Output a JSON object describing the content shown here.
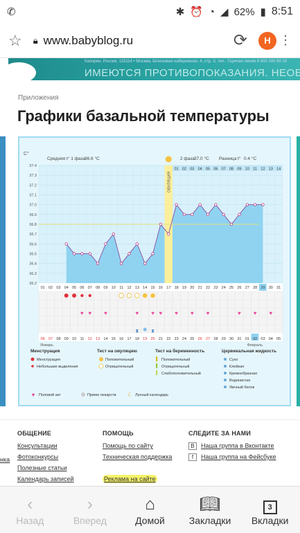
{
  "status": {
    "battery": "62%",
    "time": "8:51"
  },
  "browser": {
    "url": "www.babyblog.ru",
    "avatar_letter": "H"
  },
  "banner": {
    "small_text": "Капорин, Россия, 115114 • Москва, Шлюзовая набережная, 4, стр. 3, тел.: Горячая линия 8 800 200 80 20",
    "big_text": "ИМЕЮТСЯ ПРОТИВОПОКАЗАНИЯ. НЕОБХОДИМО ПРОКОНСУЛЬТИРОВАТЬСЯ"
  },
  "breadcrumb": "Приложения",
  "page_title": "Графики базальной температуры",
  "chart_data": {
    "type": "line",
    "y_unit": "C°",
    "ylim": [
      36.2,
      37.4
    ],
    "y_ticks": [
      "37.4",
      "37.3",
      "37.2",
      "37.1",
      "37.0",
      "36.9",
      "36.8",
      "36.7",
      "36.6",
      "36.5",
      "36.4",
      "36.3",
      "36.2"
    ],
    "phase1_label": "Средняя t° 1 фаза",
    "phase1_value": "36.6 °C",
    "phase2_label": "2 фаза",
    "phase2_value": "37.0 °C",
    "diff_label": "Разница t°",
    "diff_value": "0.4 °C",
    "ovulation_label": "ОВУЛЯЦИЯ",
    "ovulation_day": 17,
    "x": [
      1,
      2,
      3,
      4,
      5,
      6,
      7,
      8,
      9,
      10,
      11,
      12,
      13,
      14,
      15,
      16,
      17,
      18,
      19,
      20,
      21,
      22,
      23,
      24,
      25,
      26,
      27,
      28,
      29,
      30,
      31
    ],
    "values": [
      null,
      null,
      null,
      36.6,
      36.5,
      36.5,
      36.5,
      36.4,
      36.6,
      36.7,
      36.4,
      36.5,
      36.6,
      36.4,
      36.5,
      36.8,
      36.7,
      37.0,
      36.9,
      36.9,
      37.0,
      36.9,
      37.0,
      36.9,
      36.8,
      36.9,
      37.0,
      37.0,
      37.0,
      null,
      null
    ],
    "baseline": 36.8,
    "cycle_days_labels": [
      "01",
      "02",
      "03",
      "04",
      "05",
      "06",
      "07",
      "08",
      "09",
      "10",
      "11",
      "12",
      "13",
      "14",
      "15",
      "16",
      "17",
      "18",
      "19",
      "20",
      "21",
      "22",
      "23",
      "24",
      "25",
      "26",
      "27",
      "28",
      "29",
      "30",
      "31"
    ],
    "top_days_labels": [
      "01",
      "02",
      "03",
      "04",
      "05",
      "06",
      "07",
      "08",
      "09",
      "10",
      "11",
      "12",
      "13",
      "14"
    ],
    "date_labels": [
      "06",
      "07",
      "08",
      "09",
      "10",
      "11",
      "12",
      "13",
      "14",
      "15",
      "16",
      "17",
      "18",
      "19",
      "20",
      "21",
      "22",
      "23",
      "24",
      "25",
      "26",
      "27",
      "28",
      "29",
      "30",
      "31",
      "01",
      "02",
      "03",
      "04",
      "05"
    ],
    "red_dates": [
      "06",
      "07",
      "12",
      "13",
      "19",
      "20",
      "26",
      "27"
    ],
    "month1": "Январь",
    "month2": "Февраль"
  },
  "legend": {
    "menstruation_h": "Менструация",
    "menstruation": "Менструация",
    "small_discharge": "Небольшие выделения",
    "ovulation_test_h": "Тест на овуляцию",
    "positive": "Положительный",
    "negative": "Отрицательный",
    "pregnancy_test_h": "Тест на беременность",
    "preg_positive": "Положительный",
    "preg_negative": "Отрицательный",
    "preg_weak": "Слабоположительный",
    "cervical_h": "Цервикальная жидкость",
    "dry": "Сухо",
    "sticky": "Клейкая",
    "creamy": "Кремообразная",
    "watery": "Водянистая",
    "eggwhite": "Яичный белок",
    "sex": "Половой акт",
    "pills": "Прием лекарств",
    "lunar": "Лунный календарь"
  },
  "footer": {
    "col1_h": "ОБЩЕНИЕ",
    "col1_links": [
      "Консультации",
      "Фотоконкурсы",
      "Полезные статьи",
      "Календарь записей"
    ],
    "col0_links": [
      "нка"
    ],
    "col2_h": "ПОМОЩЬ",
    "col2_links": [
      "Помощь по сайту",
      "Техническая поддержка",
      "Реклама на сайте"
    ],
    "col3_h": "СЛЕДИТЕ ЗА НАМИ",
    "col3_links": [
      "Наша группа в Вконтакте",
      "Наша группа на Фейсбуке"
    ]
  },
  "nav": {
    "back": "Назад",
    "forward": "Вперед",
    "home": "Домой",
    "bookmarks": "Закладки",
    "tabs": "Вкладки",
    "tab_count": "3"
  }
}
